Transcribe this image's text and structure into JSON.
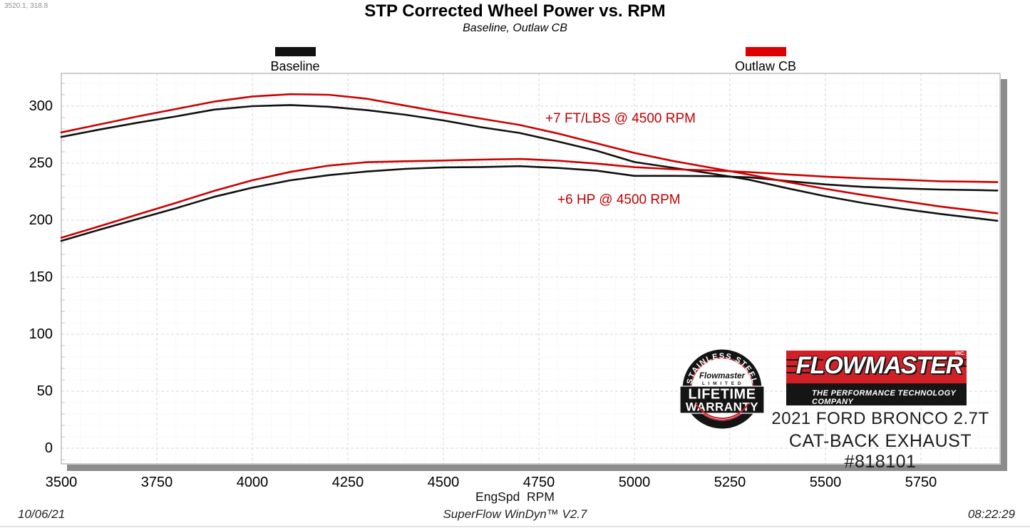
{
  "header": {
    "coords_readout": "3520.1, 318.8",
    "title": "STP Corrected Wheel Power vs. RPM",
    "subtitle": "Baseline, Outlaw CB"
  },
  "legend": [
    {
      "label": "Baseline",
      "color": "#111111"
    },
    {
      "label": "Outlaw CB",
      "color": "#dd0000"
    }
  ],
  "annotations": [
    {
      "text": "+7 FT/LBS @ 4500 RPM"
    },
    {
      "text": "+6 HP @ 4500 RPM"
    }
  ],
  "chart_data": {
    "type": "line",
    "title": "STP Corrected Wheel Power vs. RPM",
    "subtitle": "Baseline, Outlaw CB",
    "xlabel": "EngSpd  RPM",
    "ylabel": "",
    "grid": true,
    "legend_position": "top",
    "x_range": [
      3500,
      5957
    ],
    "y_range": [
      -13.75,
      328.75
    ],
    "x_ticks": [
      3500,
      3750,
      4000,
      4250,
      4500,
      4750,
      5000,
      5250,
      5500,
      5750
    ],
    "y_ticks": [
      0,
      50,
      100,
      150,
      200,
      250,
      300
    ],
    "x": [
      3500,
      3600,
      3700,
      3800,
      3900,
      4000,
      4100,
      4200,
      4300,
      4400,
      4500,
      4600,
      4700,
      4800,
      4900,
      5000,
      5100,
      5200,
      5300,
      5400,
      5500,
      5600,
      5700,
      5800,
      5900,
      5950
    ],
    "series": [
      {
        "name": "Baseline Torque (ft-lbs)",
        "color": "#111111",
        "values": [
          273,
          279.5,
          285.5,
          291,
          297,
          300,
          301,
          299.5,
          296.5,
          292.5,
          287.5,
          281.5,
          276.5,
          269,
          261,
          251,
          246,
          241,
          235.5,
          228,
          221,
          215,
          210,
          205.5,
          201.5,
          199.5
        ]
      },
      {
        "name": "Baseline Power (HP)",
        "color": "#111111",
        "values": [
          181.9,
          191.6,
          201.1,
          210.5,
          220.5,
          228.5,
          235.0,
          239.5,
          242.7,
          245.0,
          246.3,
          246.6,
          247.4,
          245.8,
          243.5,
          238.9,
          238.9,
          238.6,
          237.6,
          234.4,
          231.4,
          229.2,
          227.9,
          226.9,
          226.4,
          226.0
        ]
      },
      {
        "name": "Outlaw CB Torque (ft-lbs)",
        "color": "#cc0000",
        "values": [
          277,
          284,
          291,
          297.5,
          304,
          308.5,
          310.5,
          310,
          306.5,
          300.5,
          294.5,
          289,
          283.5,
          276,
          267.5,
          259,
          252,
          246,
          240,
          233.5,
          227.5,
          222,
          217,
          212,
          208,
          206
        ]
      },
      {
        "name": "Outlaw CB Power (HP)",
        "color": "#cc0000",
        "values": [
          184.6,
          194.7,
          205.0,
          215.2,
          225.7,
          235.0,
          242.4,
          247.9,
          250.9,
          251.7,
          252.3,
          253.1,
          253.7,
          252.2,
          249.6,
          246.5,
          244.7,
          243.6,
          242.2,
          240.1,
          238.2,
          236.7,
          235.5,
          234.1,
          233.7,
          233.4
        ]
      }
    ]
  },
  "branding": {
    "badge": {
      "arc_top": "STAINLESS STEEL",
      "script": "Flowmaster",
      "limited": "L I M I T E D",
      "line1": "LIFETIME",
      "line2": "WARRANTY",
      "accent_color": "#c8202a"
    },
    "logo": {
      "name": "FLOWMASTER",
      "inc": "INC.",
      "tagline": "THE PERFORMANCE TECHNOLOGY COMPANY",
      "red": "#d22027"
    },
    "vehicle_line1": "2021 FORD BRONCO 2.7T",
    "vehicle_line2": "CAT-BACK EXHAUST #818101"
  },
  "axis": {
    "x_title": "EngSpd  RPM"
  },
  "footer": {
    "date": "10/06/21",
    "software": "SuperFlow WinDyn™ V2.7",
    "time": "08:22:29"
  }
}
